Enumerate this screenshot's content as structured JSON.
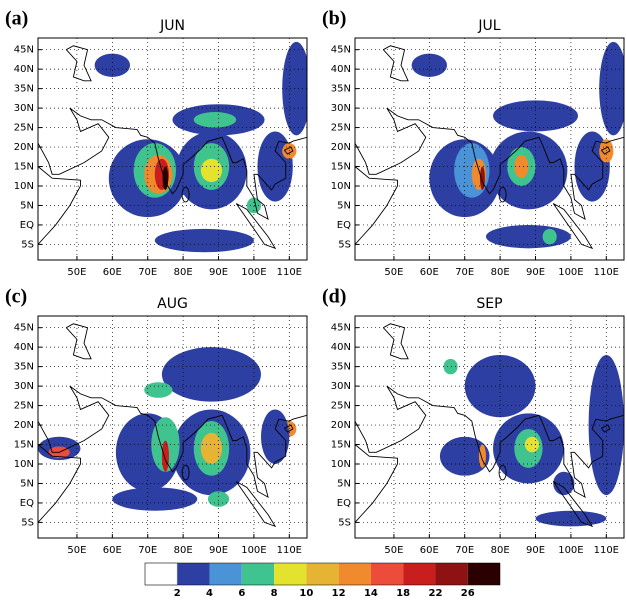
{
  "panels": [
    {
      "label": "(a)",
      "title": "JUN"
    },
    {
      "label": "(b)",
      "title": "JUL"
    },
    {
      "label": "(c)",
      "title": "AUG"
    },
    {
      "label": "(d)",
      "title": "SEP"
    }
  ],
  "map": {
    "xlim": [
      39,
      115
    ],
    "ylim": [
      -9,
      48
    ],
    "xticks": [
      {
        "value": 50,
        "label": "50E"
      },
      {
        "value": 60,
        "label": "60E"
      },
      {
        "value": 70,
        "label": "70E"
      },
      {
        "value": 80,
        "label": "80E"
      },
      {
        "value": 90,
        "label": "90E"
      },
      {
        "value": 100,
        "label": "100E"
      },
      {
        "value": 110,
        "label": "110E"
      }
    ],
    "yticks": [
      {
        "value": 45,
        "label": "45N"
      },
      {
        "value": 40,
        "label": "40N"
      },
      {
        "value": 35,
        "label": "35N"
      },
      {
        "value": 30,
        "label": "30N"
      },
      {
        "value": 25,
        "label": "25N"
      },
      {
        "value": 20,
        "label": "20N"
      },
      {
        "value": 15,
        "label": "15N"
      },
      {
        "value": 10,
        "label": "10N"
      },
      {
        "value": 5,
        "label": "5N"
      },
      {
        "value": 0,
        "label": "EQ"
      },
      {
        "value": -5,
        "label": "5S"
      }
    ]
  },
  "colorbar": {
    "levels": [
      2,
      4,
      6,
      8,
      10,
      12,
      14,
      18,
      22,
      26
    ],
    "colors": [
      "#ffffff",
      "#2e3fa3",
      "#4a93d6",
      "#3fc48f",
      "#e3e22e",
      "#e6b332",
      "#f08a2c",
      "#ec4c3a",
      "#c81e1e",
      "#8e1212",
      "#2a0000"
    ]
  }
}
